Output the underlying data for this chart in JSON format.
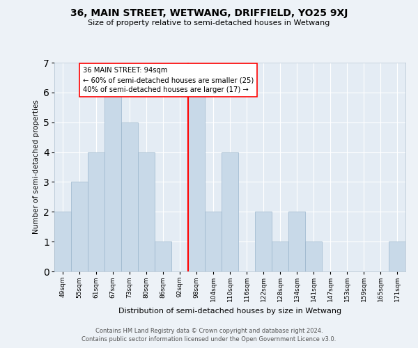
{
  "title": "36, MAIN STREET, WETWANG, DRIFFIELD, YO25 9XJ",
  "subtitle": "Size of property relative to semi-detached houses in Wetwang",
  "xlabel": "Distribution of semi-detached houses by size in Wetwang",
  "ylabel": "Number of semi-detached properties",
  "bin_labels": [
    "49sqm",
    "55sqm",
    "61sqm",
    "67sqm",
    "73sqm",
    "80sqm",
    "86sqm",
    "92sqm",
    "98sqm",
    "104sqm",
    "110sqm",
    "116sqm",
    "122sqm",
    "128sqm",
    "134sqm",
    "141sqm",
    "147sqm",
    "153sqm",
    "159sqm",
    "165sqm",
    "171sqm"
  ],
  "bar_heights": [
    2,
    3,
    4,
    6,
    5,
    4,
    1,
    0,
    6,
    2,
    4,
    0,
    2,
    1,
    2,
    1,
    0,
    0,
    0,
    0,
    1
  ],
  "bar_color": "#c8d9e8",
  "bar_edgecolor": "#9ab5cc",
  "subject_line_index": 7.5,
  "annotation_line1": "36 MAIN STREET: 94sqm",
  "annotation_line2": "← 60% of semi-detached houses are smaller (25)",
  "annotation_line3": "40% of semi-detached houses are larger (17) →",
  "ylim": [
    0,
    7
  ],
  "yticks": [
    0,
    1,
    2,
    3,
    4,
    5,
    6,
    7
  ],
  "footer1": "Contains HM Land Registry data © Crown copyright and database right 2024.",
  "footer2": "Contains public sector information licensed under the Open Government Licence v3.0.",
  "bg_color": "#edf2f7",
  "plot_bg_color": "#e4ecf4",
  "grid_color": "#ffffff"
}
